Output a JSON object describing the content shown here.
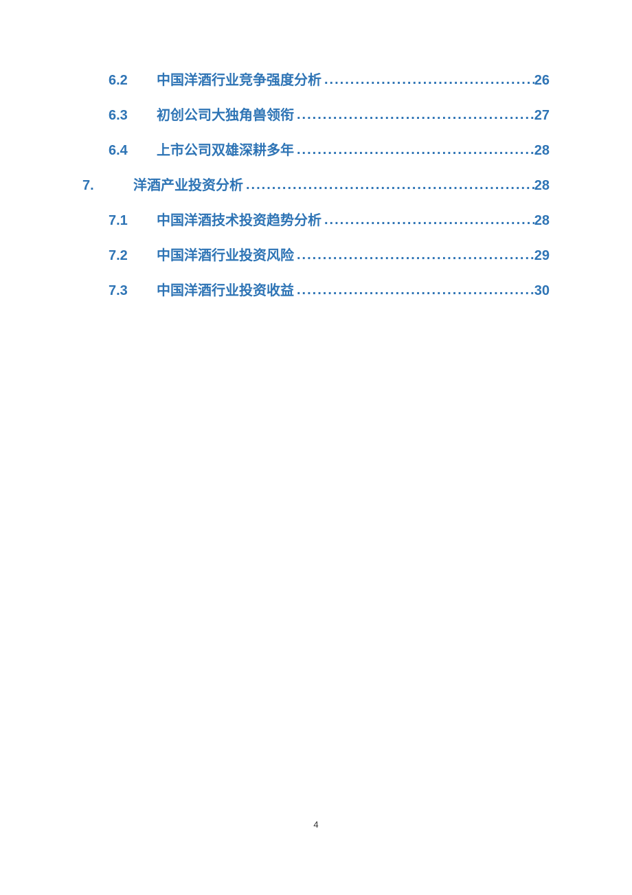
{
  "toc": {
    "color": "#2e74b5",
    "entries": [
      {
        "level": 2,
        "number": "6.2",
        "title": "中国洋酒行业竞争强度分析",
        "page": "26"
      },
      {
        "level": 2,
        "number": "6.3",
        "title": "初创公司大独角兽领衔",
        "page": "27"
      },
      {
        "level": 2,
        "number": "6.4",
        "title": "上市公司双雄深耕多年",
        "page": "28"
      },
      {
        "level": 1,
        "number": "7.",
        "title": "洋酒产业投资分析",
        "page": "28"
      },
      {
        "level": 2,
        "number": "7.1",
        "title": "中国洋酒技术投资趋势分析",
        "page": "28"
      },
      {
        "level": 2,
        "number": "7.2",
        "title": "中国洋酒行业投资风险",
        "page": "29"
      },
      {
        "level": 2,
        "number": "7.3",
        "title": "中国洋酒行业投资收益",
        "page": "30"
      }
    ]
  },
  "pageNumber": "4",
  "background_color": "#ffffff",
  "font_family": "Microsoft YaHei"
}
